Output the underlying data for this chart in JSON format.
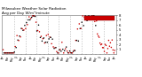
{
  "title_line1": "Milwaukee Weather Solar Radiation",
  "title_line2": "Avg per Day W/m²/minute",
  "y_min": 0,
  "y_max": 8,
  "y_ticks": [
    1,
    2,
    3,
    4,
    5,
    6,
    7,
    8
  ],
  "background_color": "#ffffff",
  "dot_color_red": "#cc0000",
  "dot_color_black": "#000000",
  "grid_color": "#bbbbbb",
  "legend_box_color": "#cc0000",
  "num_points": 130,
  "seed": 17
}
